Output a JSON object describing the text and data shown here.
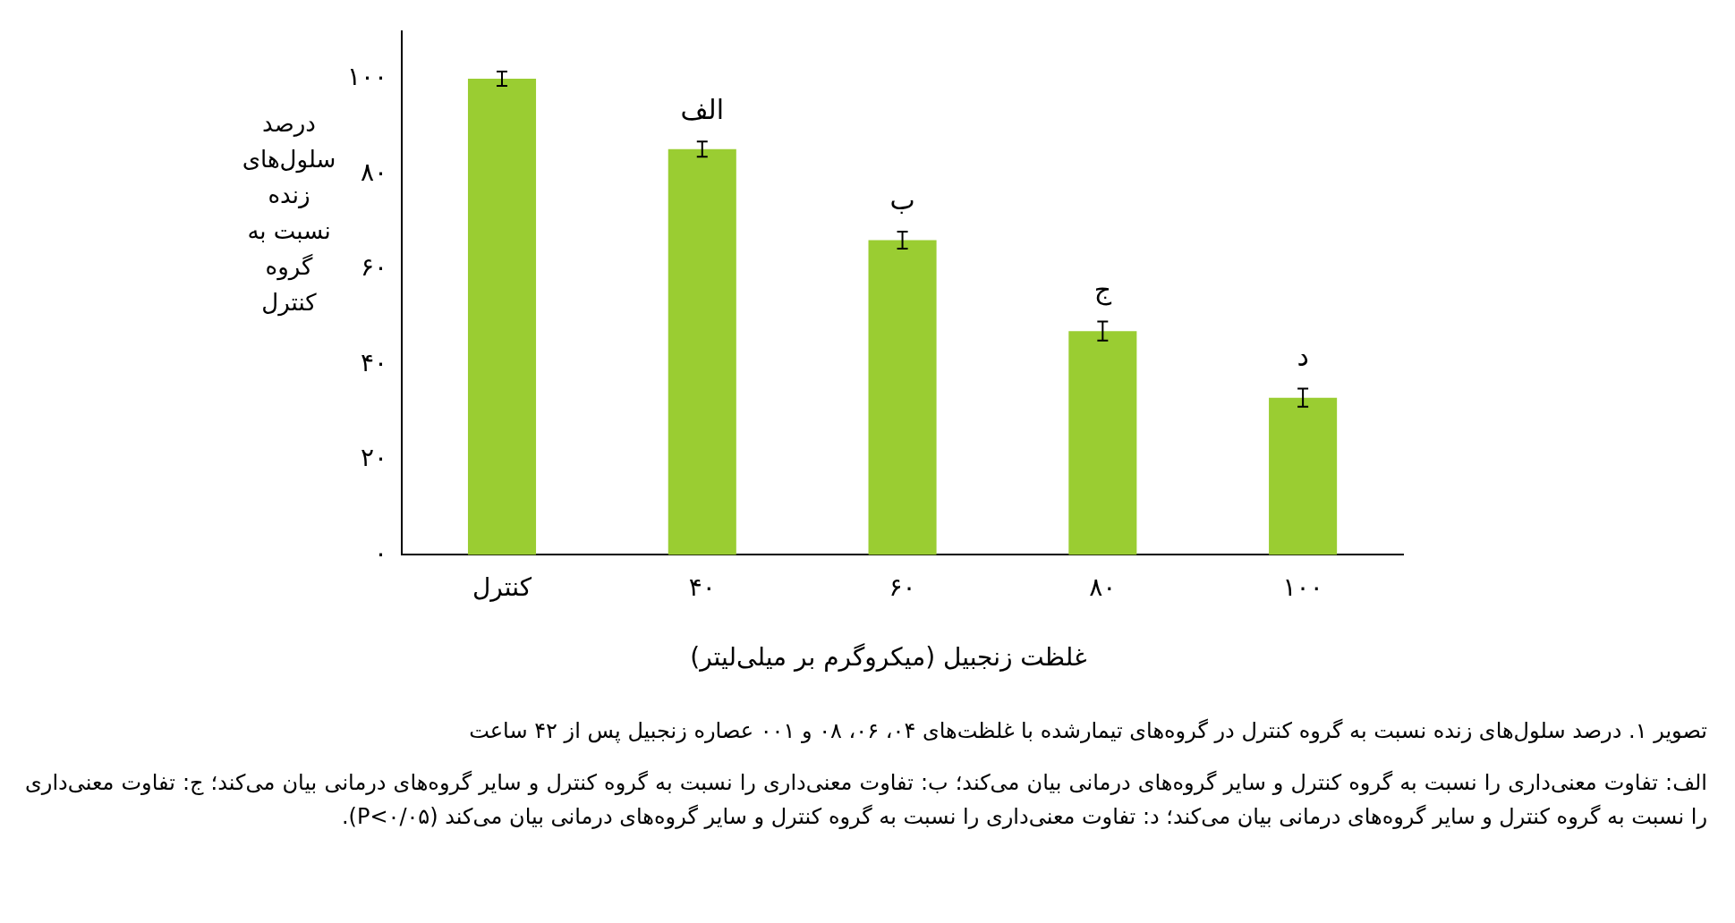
{
  "chart_data": {
    "type": "bar",
    "xlabel": "غلظت زنجبیل (میکروگرم بر میلی‌لیتر)",
    "ylabel": "درصد سلول‌های زنده نسبت به گروه کنترل",
    "categories": [
      "کنترل",
      "۴۰",
      "۶۰",
      "۸۰",
      "۱۰۰"
    ],
    "values": [
      100,
      85.2,
      66.1,
      47,
      33
    ],
    "errors": [
      1.5,
      1.6,
      1.8,
      2,
      1.9
    ],
    "color": "#9acd32",
    "ylim": [
      0,
      110
    ],
    "yticks": [
      {
        "value": 0,
        "label": "۰"
      },
      {
        "value": 20,
        "label": "۲۰"
      },
      {
        "value": 40,
        "label": "۴۰"
      },
      {
        "value": 60,
        "label": "۶۰"
      },
      {
        "value": 80,
        "label": "۸۰"
      },
      {
        "value": 100,
        "label": "۱۰۰"
      }
    ],
    "grid": false,
    "legend": false,
    "annotations": [
      {
        "text": "الف",
        "x": "۴۰",
        "y": 85.2
      },
      {
        "text": "ب",
        "x": "۶۰",
        "y": 66.1
      },
      {
        "text": "ج",
        "x": "۸۰",
        "y": 47
      },
      {
        "text": "د",
        "x": "۱۰۰",
        "y": 33
      },
      "تصویر ۱. درصد سلول‌های زنده نسبت به گروه کنترل در گروه‌های تیمارشده با غلظت‌های ۰۴، ۰۶، ۰۸ و ۰۰۱ عصاره زنجبیل پس از ۴۲ ساعت",
      "الف: تفاوت معنی‌داری را نسبت به گروه کنترل و سایر گروه‌های درمانی بیان می‌کند؛ ب: تفاوت معنی‌داری را نسبت به گروه کنترل و سایر گروه‌های درمانی بیان می‌کند؛ ج: تفاوت معنی‌داری را نسبت به گروه کنترل و سایر گروه‌های درمانی بیان می‌کند؛ د: تفاوت معنی‌داری را نسبت به گروه کنترل و سایر گروه‌های درمانی بیان می‌کند (P<۰/۰۵)."
    ]
  }
}
